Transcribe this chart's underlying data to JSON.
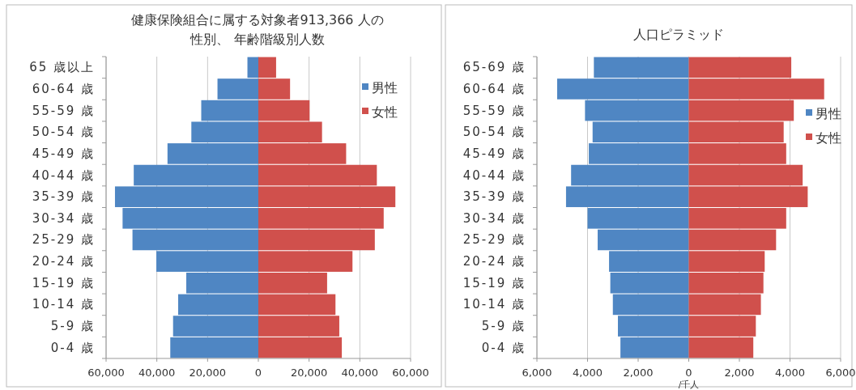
{
  "chart_data": [
    {
      "type": "bar",
      "orientation": "horizontal",
      "stacked": true,
      "title": "健康保険組合に属する対象者913,366 人の性別、 年齢階級別人数",
      "categories": [
        "65 歳以上",
        "60-64 歳",
        "55-59 歳",
        "50-54 歳",
        "45-49 歳",
        "40-44 歳",
        "35-39 歳",
        "30-34 歳",
        "25-29 歳",
        "20-24 歳",
        "15-19 歳",
        "10-14 歳",
        "5-9 歳",
        "0-4 歳"
      ],
      "series": [
        {
          "name": "男性",
          "color": "#4f86c3",
          "values": [
            -4300,
            -16100,
            -22500,
            -26400,
            -35800,
            -49100,
            -56500,
            -53500,
            -49600,
            -40200,
            -28400,
            -31600,
            -33600,
            -34700
          ]
        },
        {
          "name": "女性",
          "color": "#d0504c",
          "values": [
            7000,
            12500,
            20200,
            25100,
            34600,
            46700,
            54000,
            49400,
            45900,
            37100,
            27100,
            30400,
            31900,
            32900
          ]
        }
      ],
      "xlim": [
        -60000,
        60000
      ],
      "xticks": [
        {
          "value": -60000,
          "label": "60,000"
        },
        {
          "value": -40000,
          "label": "40,000"
        },
        {
          "value": -20000,
          "label": "20,000"
        },
        0,
        {
          "value": 20000,
          "label": "20,000"
        },
        {
          "value": 40000,
          "label": "40,000"
        },
        {
          "value": 60000,
          "label": "60,000"
        }
      ],
      "grid": "x",
      "legend": "right"
    },
    {
      "type": "bar",
      "orientation": "horizontal",
      "stacked": true,
      "title": "人口ピラミッド",
      "xlabel": "/千人",
      "categories": [
        "65-69 歳",
        "60-64 歳",
        "55-59 歳",
        "50-54 歳",
        "45-49 歳",
        "40-44 歳",
        "35-39 歳",
        "30-34 歳",
        "25-29 歳",
        "20-24 歳",
        "15-19 歳",
        "10-14 歳",
        "5-9 歳",
        "0-4 歳"
      ],
      "series": [
        {
          "name": "男性",
          "color": "#4f86c3",
          "values": [
            -3750,
            -5200,
            -4100,
            -3800,
            -3950,
            -4650,
            -4850,
            -4000,
            -3600,
            -3150,
            -3100,
            -3000,
            -2800,
            -2700
          ]
        },
        {
          "name": "女性",
          "color": "#d0504c",
          "values": [
            4050,
            5350,
            4150,
            3750,
            3850,
            4500,
            4700,
            3850,
            3450,
            3000,
            2950,
            2850,
            2650,
            2550
          ]
        }
      ],
      "xlim": [
        -6000,
        6000
      ],
      "xticks": [
        {
          "value": -6000,
          "label": "6,000"
        },
        {
          "value": -4000,
          "label": "4,000"
        },
        {
          "value": -2000,
          "label": "2,000"
        },
        0,
        {
          "value": 2000,
          "label": "2,000"
        },
        {
          "value": 4000,
          "label": "4,000"
        },
        {
          "value": 6000,
          "label": "6,000"
        }
      ],
      "grid": "x",
      "legend": "right"
    }
  ]
}
